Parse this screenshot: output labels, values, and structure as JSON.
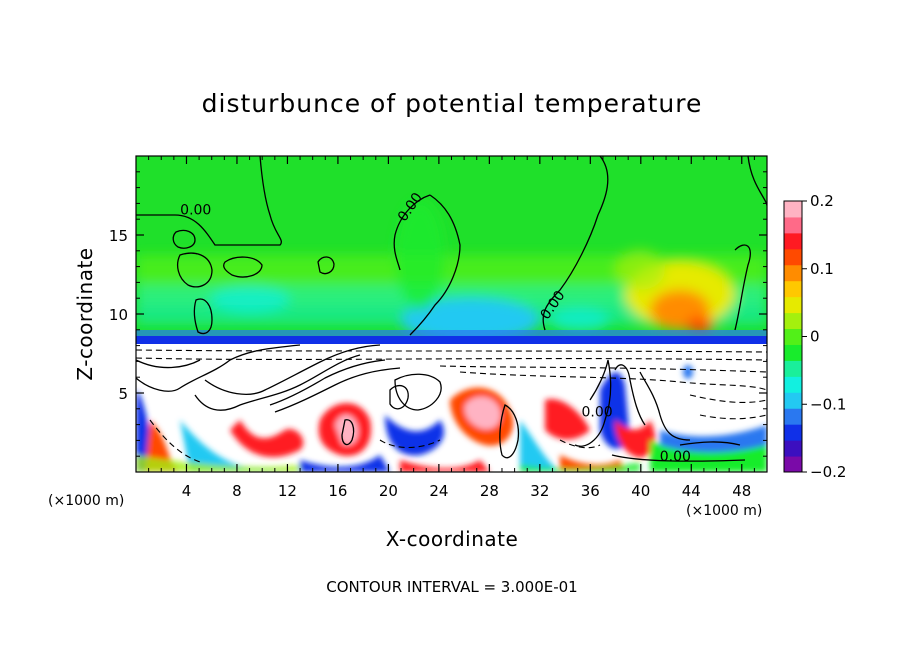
{
  "chart_data": {
    "type": "heatmap",
    "title": "disturbunce of potential temperature",
    "xlabel": "X-coordinate",
    "ylabel": "Z-coordinate",
    "x_unit_left": "(×1000 m)",
    "x_unit_right": "(×1000 m)",
    "xlim": [
      0,
      50
    ],
    "ylim": [
      0,
      20
    ],
    "xticks": [
      4,
      8,
      12,
      16,
      20,
      24,
      28,
      32,
      36,
      40,
      44,
      48
    ],
    "yticks": [
      5,
      10,
      15
    ],
    "colorbar": {
      "range": [
        -0.2,
        0.2
      ],
      "ticks": [
        {
          "value": 0.2,
          "label": "0.2"
        },
        {
          "value": 0.1,
          "label": "0.1"
        },
        {
          "value": 0.0,
          "label": "0"
        },
        {
          "value": -0.1,
          "label": "−0.1"
        },
        {
          "value": -0.2,
          "label": "−0.2"
        }
      ],
      "colors": [
        "#7a0aa8",
        "#3c0fbf",
        "#1030e8",
        "#2a78f0",
        "#23c9f2",
        "#12f0e0",
        "#1aef9a",
        "#18ec2c",
        "#52f018",
        "#a4f00e",
        "#e6ea00",
        "#ffc800",
        "#ff8c00",
        "#ff4a00",
        "#ff1a22",
        "#ff6a88",
        "#ffb3c3"
      ]
    },
    "contour_interval": "CONTOUR INTERVAL = 3.000E-01",
    "contour_labels": [
      {
        "text": "0.00",
        "x": 3.5,
        "z": 16.3
      },
      {
        "text": "0.00",
        "x": 21.3,
        "z": 15.8,
        "rotate": -55
      },
      {
        "text": "0.00",
        "x": 32.6,
        "z": 9.6,
        "rotate": -55
      },
      {
        "text": "0.00",
        "x": 35.3,
        "z": 3.5
      },
      {
        "text": "0.00",
        "x": 41.5,
        "z": 0.7
      }
    ]
  }
}
